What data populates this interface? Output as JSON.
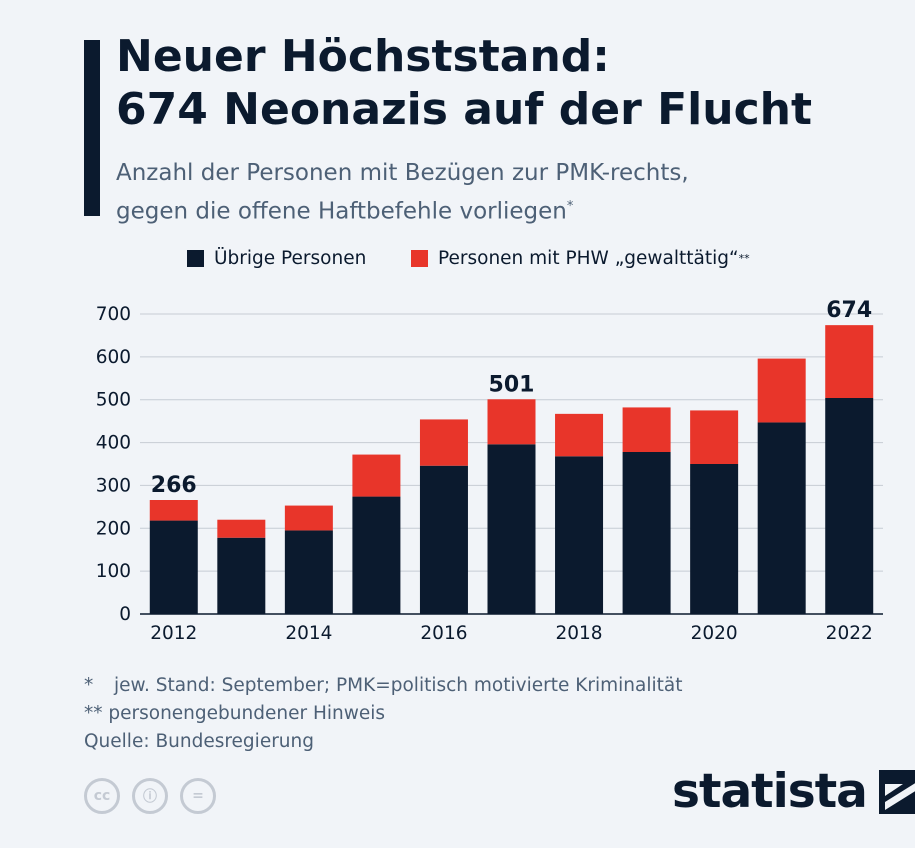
{
  "header": {
    "title_line1": "Neuer Höchststand:",
    "title_line2": "674 Neonazis auf der Flucht",
    "subtitle_line1": "Anzahl der Personen mit Bezügen zur PMK-rechts,",
    "subtitle_line2": "gegen die offene Haftbefehle vorliegen",
    "subtitle_mark": "*"
  },
  "legend": {
    "item1": "Übrige Personen",
    "item2": "Personen mit PHW „gewalttätig“",
    "item2_mark": "**"
  },
  "colors": {
    "dark": "#0b1a2e",
    "red": "#e8352a",
    "grid": "#c6ccd4"
  },
  "chart_data": {
    "type": "bar",
    "stacked": true,
    "title": "Neuer Höchststand: 674 Neonazis auf der Flucht",
    "categories": [
      "2012",
      "2013",
      "2014",
      "2015",
      "2016",
      "2017",
      "2018",
      "2019",
      "2020",
      "2021",
      "2022"
    ],
    "x_tick_labels": [
      "2012",
      "",
      "2014",
      "",
      "2016",
      "",
      "2018",
      "",
      "2020",
      "",
      "2022"
    ],
    "series": [
      {
        "name": "Übrige Personen",
        "color": "#0b1a2e",
        "values": [
          218,
          178,
          195,
          274,
          346,
          396,
          368,
          378,
          350,
          447,
          504
        ]
      },
      {
        "name": "Personen mit PHW „gewalttätig“**",
        "color": "#e8352a",
        "values": [
          48,
          42,
          58,
          98,
          108,
          105,
          99,
          104,
          125,
          149,
          170
        ]
      }
    ],
    "totals": [
      266,
      220,
      253,
      372,
      454,
      501,
      467,
      482,
      475,
      596,
      674
    ],
    "annotations": [
      {
        "category": "2012",
        "label": "266"
      },
      {
        "category": "2017",
        "label": "501"
      },
      {
        "category": "2022",
        "label": "674"
      }
    ],
    "yticks": [
      0,
      100,
      200,
      300,
      400,
      500,
      600,
      700
    ],
    "ylim": [
      0,
      700
    ],
    "xlabel": "",
    "ylabel": "",
    "grid": true
  },
  "notes": {
    "note1_mark": "*",
    "note1_text": "jew. Stand: September; PMK=politisch motivierte Kriminalität",
    "note2": "** personengebundener Hinweis",
    "source": "Quelle: Bundesregierung"
  },
  "footer": {
    "cc_icons": [
      "cc-icon",
      "by-icon",
      "nd-icon"
    ],
    "cc_labels": [
      "cc",
      "ⓘ",
      "="
    ],
    "brand": "statista"
  }
}
